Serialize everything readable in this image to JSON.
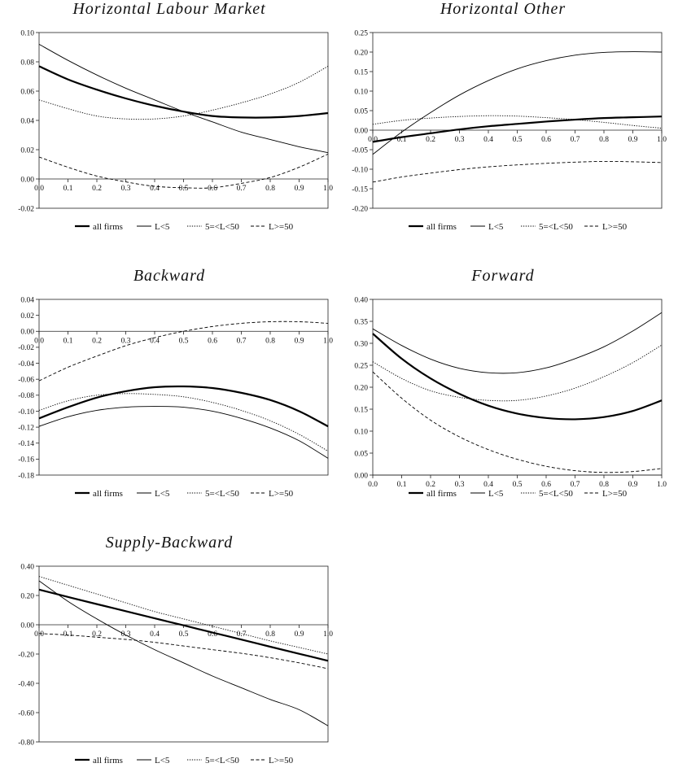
{
  "legend_entries": [
    "all firms",
    "L<5",
    "5=<L<50",
    "L>=50"
  ],
  "x_ticks": [
    "0.0",
    "0.1",
    "0.2",
    "0.3",
    "0.4",
    "0.5",
    "0.6",
    "0.7",
    "0.8",
    "0.9",
    "1.0"
  ],
  "chart_data": [
    {
      "type": "line",
      "title": "Horizontal Labour Market",
      "xlim": [
        0,
        1
      ],
      "ylim": [
        -0.02,
        0.1
      ],
      "yticks": [
        "0.10",
        "0.08",
        "0.06",
        "0.04",
        "0.02",
        "0.00",
        "-0.02"
      ],
      "x_axis_at": 0,
      "x": [
        0,
        0.1,
        0.2,
        0.3,
        0.4,
        0.5,
        0.6,
        0.7,
        0.8,
        0.9,
        1.0
      ],
      "series": [
        {
          "name": "all firms",
          "style": "thick",
          "values": [
            0.077,
            0.068,
            0.061,
            0.055,
            0.05,
            0.046,
            0.043,
            0.042,
            0.042,
            0.043,
            0.045
          ]
        },
        {
          "name": "L<5",
          "style": "thin",
          "values": [
            0.092,
            0.081,
            0.071,
            0.062,
            0.054,
            0.046,
            0.039,
            0.032,
            0.027,
            0.022,
            0.018
          ]
        },
        {
          "name": "5=<L<50",
          "style": "dotted",
          "values": [
            0.054,
            0.048,
            0.043,
            0.041,
            0.041,
            0.043,
            0.047,
            0.052,
            0.058,
            0.066,
            0.077
          ]
        },
        {
          "name": "L>=50",
          "style": "dashed",
          "values": [
            0.015,
            0.008,
            0.002,
            -0.002,
            -0.005,
            -0.006,
            -0.006,
            -0.003,
            0.001,
            0.008,
            0.017
          ]
        }
      ]
    },
    {
      "type": "line",
      "title": "Horizontal Other",
      "xlim": [
        0,
        1
      ],
      "ylim": [
        -0.2,
        0.25
      ],
      "yticks": [
        "0.25",
        "0.20",
        "0.15",
        "0.10",
        "0.05",
        "0.00",
        "-0.05",
        "-0.10",
        "-0.15",
        "-0.20"
      ],
      "x_axis_at": 0,
      "x": [
        0,
        0.1,
        0.2,
        0.3,
        0.4,
        0.5,
        0.6,
        0.7,
        0.8,
        0.9,
        1.0
      ],
      "series": [
        {
          "name": "all firms",
          "style": "thick",
          "values": [
            -0.03,
            -0.018,
            -0.008,
            0.002,
            0.01,
            0.016,
            0.022,
            0.027,
            0.031,
            0.033,
            0.035
          ]
        },
        {
          "name": "L<5",
          "style": "thin",
          "values": [
            -0.062,
            -0.005,
            0.045,
            0.09,
            0.127,
            0.157,
            0.178,
            0.192,
            0.199,
            0.201,
            0.2
          ]
        },
        {
          "name": "5=<L<50",
          "style": "dotted",
          "values": [
            0.015,
            0.025,
            0.031,
            0.035,
            0.037,
            0.036,
            0.032,
            0.027,
            0.02,
            0.012,
            0.005
          ]
        },
        {
          "name": "L>=50",
          "style": "dashed",
          "values": [
            -0.133,
            -0.12,
            -0.11,
            -0.101,
            -0.094,
            -0.089,
            -0.085,
            -0.082,
            -0.08,
            -0.081,
            -0.083
          ]
        }
      ]
    },
    {
      "type": "line",
      "title": "Backward",
      "xlim": [
        0,
        1
      ],
      "ylim": [
        -0.18,
        0.04
      ],
      "yticks": [
        "0.04",
        "0.02",
        "0.00",
        "-0.02",
        "-0.04",
        "-0.06",
        "-0.08",
        "-0.10",
        "-0.12",
        "-0.14",
        "-0.16",
        "-0.18"
      ],
      "x_axis_at": 0,
      "x": [
        0,
        0.1,
        0.2,
        0.3,
        0.4,
        0.5,
        0.6,
        0.7,
        0.8,
        0.9,
        1.0
      ],
      "series": [
        {
          "name": "all firms",
          "style": "thick",
          "values": [
            -0.109,
            -0.095,
            -0.083,
            -0.075,
            -0.07,
            -0.069,
            -0.071,
            -0.077,
            -0.086,
            -0.1,
            -0.119
          ]
        },
        {
          "name": "L<5",
          "style": "thin",
          "values": [
            -0.119,
            -0.107,
            -0.099,
            -0.095,
            -0.094,
            -0.095,
            -0.1,
            -0.109,
            -0.121,
            -0.137,
            -0.159
          ]
        },
        {
          "name": "5=<L<50",
          "style": "dotted",
          "values": [
            -0.099,
            -0.087,
            -0.08,
            -0.078,
            -0.079,
            -0.082,
            -0.089,
            -0.099,
            -0.112,
            -0.129,
            -0.15
          ]
        },
        {
          "name": "L>=50",
          "style": "dashed",
          "values": [
            -0.062,
            -0.045,
            -0.031,
            -0.018,
            -0.008,
            0.0,
            0.006,
            0.01,
            0.012,
            0.012,
            0.01
          ]
        }
      ]
    },
    {
      "type": "line",
      "title": "Forward",
      "xlim": [
        0,
        1
      ],
      "ylim": [
        0,
        0.4
      ],
      "yticks": [
        "0.40",
        "0.35",
        "0.30",
        "0.25",
        "0.20",
        "0.15",
        "0.10",
        "0.05",
        "0.00"
      ],
      "x_axis_at": 0,
      "x": [
        0,
        0.1,
        0.2,
        0.3,
        0.4,
        0.5,
        0.6,
        0.7,
        0.8,
        0.9,
        1.0
      ],
      "series": [
        {
          "name": "all firms",
          "style": "thick",
          "values": [
            0.322,
            0.265,
            0.22,
            0.185,
            0.158,
            0.14,
            0.13,
            0.127,
            0.132,
            0.146,
            0.17
          ]
        },
        {
          "name": "L<5",
          "style": "thin",
          "values": [
            0.333,
            0.295,
            0.264,
            0.243,
            0.233,
            0.233,
            0.244,
            0.265,
            0.292,
            0.328,
            0.37
          ]
        },
        {
          "name": "5=<L<50",
          "style": "dotted",
          "values": [
            0.258,
            0.22,
            0.192,
            0.177,
            0.17,
            0.17,
            0.18,
            0.198,
            0.224,
            0.256,
            0.296
          ]
        },
        {
          "name": "L>=50",
          "style": "dashed",
          "values": [
            0.235,
            0.175,
            0.125,
            0.087,
            0.058,
            0.036,
            0.02,
            0.01,
            0.006,
            0.008,
            0.015
          ]
        }
      ]
    },
    {
      "type": "line",
      "title": "Supply-Backward",
      "xlim": [
        0,
        1
      ],
      "ylim": [
        -0.8,
        0.4
      ],
      "yticks": [
        "0.40",
        "0.20",
        "0.00",
        "-0.20",
        "-0.40",
        "-0.60",
        "-0.80"
      ],
      "x_axis_at": 0,
      "x": [
        0,
        0.1,
        0.2,
        0.3,
        0.4,
        0.5,
        0.6,
        0.7,
        0.8,
        0.9,
        1.0
      ],
      "series": [
        {
          "name": "all firms",
          "style": "thick",
          "values": [
            0.24,
            0.19,
            0.141,
            0.093,
            0.044,
            -0.004,
            -0.053,
            -0.101,
            -0.15,
            -0.198,
            -0.246
          ]
        },
        {
          "name": "L<5",
          "style": "thin",
          "values": [
            0.3,
            0.16,
            0.04,
            -0.07,
            -0.17,
            -0.26,
            -0.35,
            -0.43,
            -0.51,
            -0.58,
            -0.69
          ]
        },
        {
          "name": "5=<L<50",
          "style": "dotted",
          "values": [
            0.33,
            0.27,
            0.21,
            0.15,
            0.09,
            0.04,
            -0.01,
            -0.06,
            -0.11,
            -0.155,
            -0.2
          ]
        },
        {
          "name": "L>=50",
          "style": "dashed",
          "values": [
            -0.06,
            -0.07,
            -0.085,
            -0.1,
            -0.12,
            -0.145,
            -0.17,
            -0.195,
            -0.225,
            -0.26,
            -0.3
          ]
        }
      ]
    }
  ]
}
